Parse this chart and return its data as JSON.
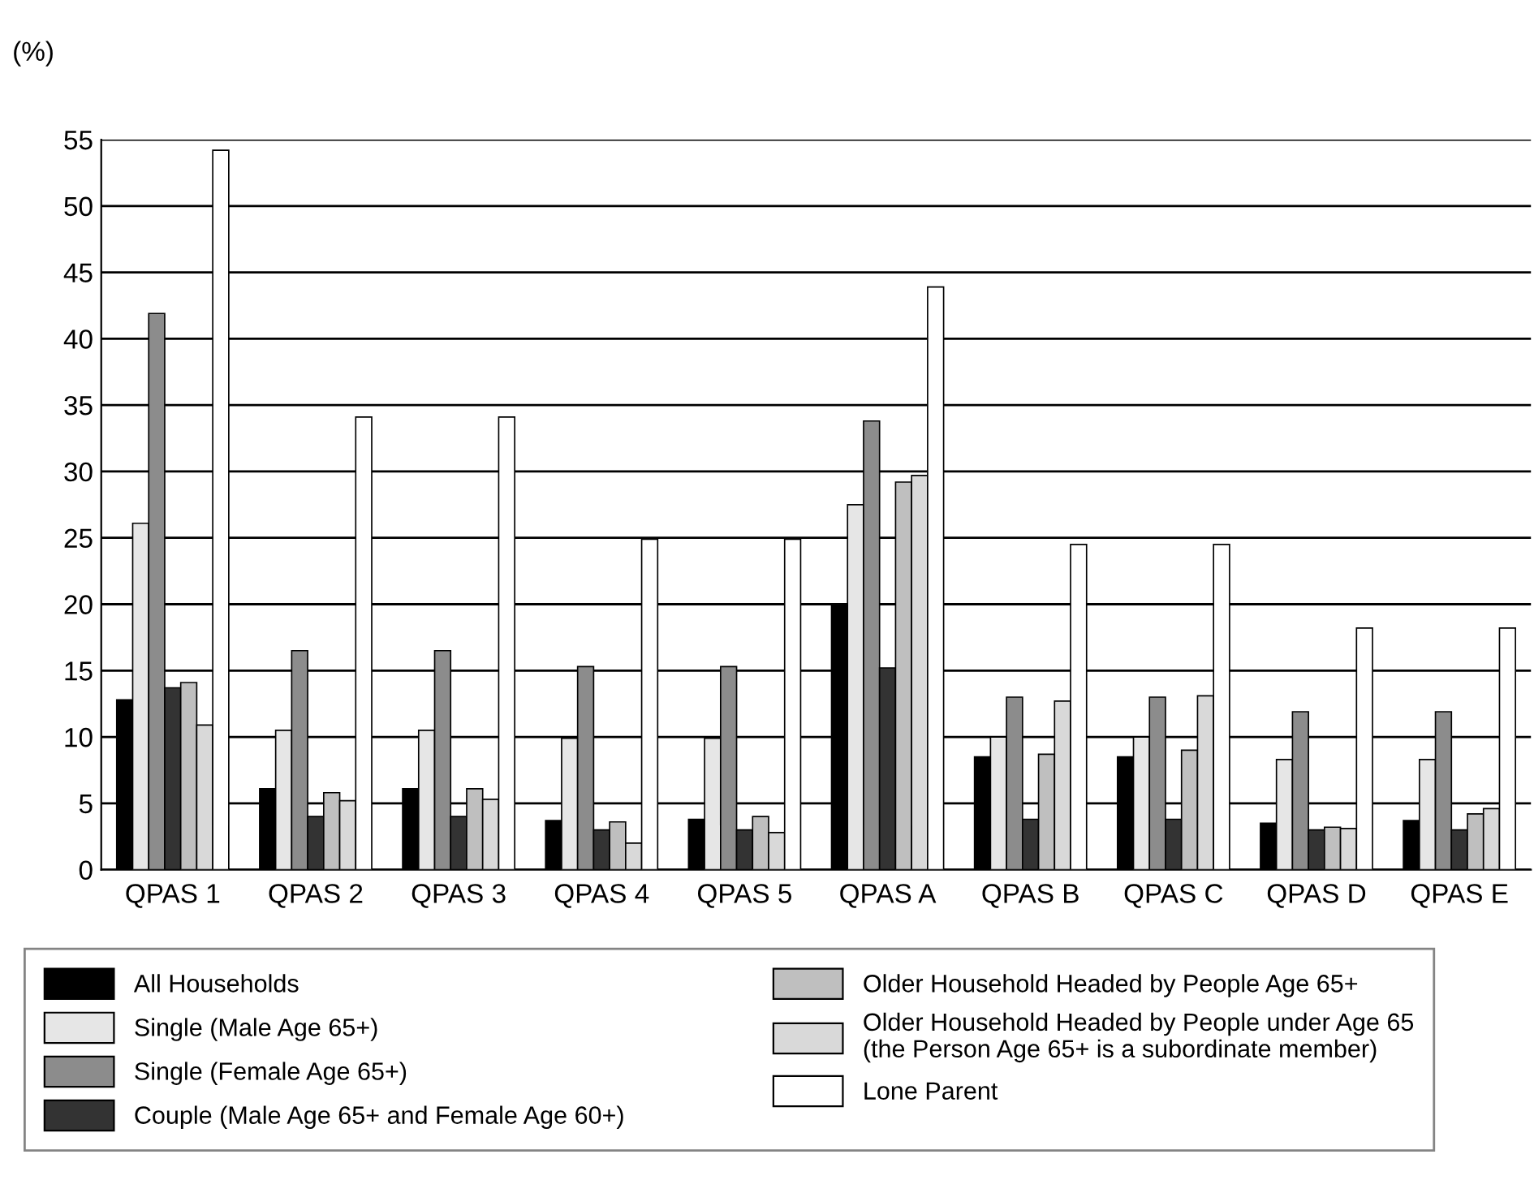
{
  "chart_data": {
    "type": "bar",
    "ylabel": "(%)",
    "categories": [
      "QPAS 1",
      "QPAS 2",
      "QPAS 3",
      "QPAS 4",
      "QPAS 5",
      "QPAS A",
      "QPAS B",
      "QPAS C",
      "QPAS D",
      "QPAS E"
    ],
    "series": [
      {
        "name": "All Households",
        "color": "#000000",
        "values": [
          12.8,
          6.1,
          6.1,
          3.7,
          3.8,
          20.0,
          8.5,
          8.5,
          3.5,
          3.7
        ]
      },
      {
        "name": "Single (Male Age 65+)",
        "color": "#e6e6e6",
        "values": [
          26.1,
          10.5,
          10.5,
          9.9,
          9.9,
          27.5,
          10.0,
          10.0,
          8.3,
          8.3
        ]
      },
      {
        "name": "Single (Female Age 65+)",
        "color": "#8c8c8c",
        "values": [
          41.9,
          16.5,
          16.5,
          15.3,
          15.3,
          33.8,
          13.0,
          13.0,
          11.9,
          11.9
        ]
      },
      {
        "name": "Couple (Male Age 65+ and Female Age 60+)",
        "color": "#333333",
        "values": [
          13.7,
          4.0,
          4.0,
          3.0,
          3.0,
          15.2,
          3.8,
          3.8,
          3.0,
          3.0
        ]
      },
      {
        "name": "Older Household Headed by People Age 65+",
        "color": "#bfbfbf",
        "values": [
          14.1,
          5.8,
          6.1,
          3.6,
          4.0,
          29.2,
          8.7,
          9.0,
          3.2,
          4.2
        ]
      },
      {
        "name": "Older Household Headed by People under Age 65\n(the Person Age 65+ is a subordinate member)",
        "color": "#d9d9d9",
        "values": [
          10.9,
          5.2,
          5.3,
          2.0,
          2.8,
          29.7,
          12.7,
          13.1,
          3.1,
          4.6
        ]
      },
      {
        "name": "Lone Parent",
        "color": "#ffffff",
        "values": [
          54.2,
          34.1,
          34.1,
          24.9,
          24.9,
          43.9,
          24.5,
          24.5,
          18.2,
          18.2
        ]
      }
    ],
    "ylim": [
      0,
      55
    ],
    "yticks": [
      0,
      5,
      10,
      15,
      20,
      25,
      30,
      35,
      40,
      45,
      50,
      55
    ],
    "grid": "y",
    "legend": "bottom"
  }
}
